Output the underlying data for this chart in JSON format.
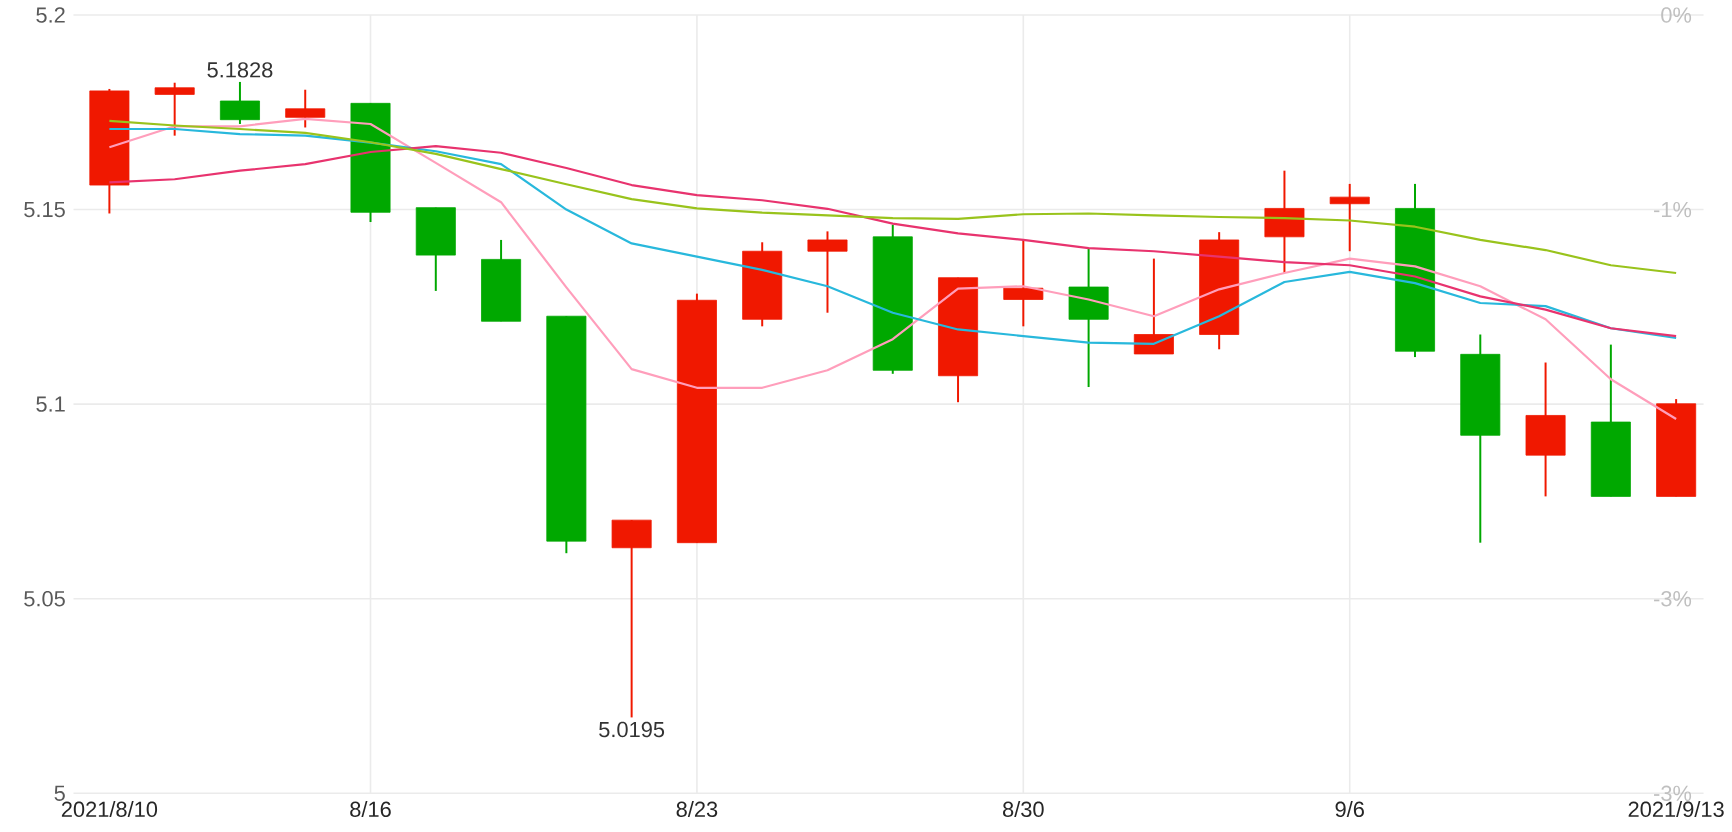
{
  "chart_data": {
    "type": "candlestick",
    "categories": [
      "2021/8/10",
      null,
      null,
      null,
      "8/16",
      null,
      null,
      null,
      null,
      "8/23",
      null,
      null,
      null,
      null,
      "8/30",
      null,
      null,
      null,
      null,
      "9/6",
      null,
      null,
      null,
      null,
      "2021/9/13"
    ],
    "ohlc": [
      [
        5.1563,
        5.181,
        5.149,
        5.1805
      ],
      [
        5.1796,
        5.1826,
        5.169,
        5.1813
      ],
      [
        5.1779,
        5.1828,
        5.172,
        5.1731
      ],
      [
        5.1737,
        5.1808,
        5.1711,
        5.1759
      ],
      [
        5.1773,
        5.1773,
        5.1468,
        5.1493
      ],
      [
        5.1505,
        5.1505,
        5.1291,
        5.1383
      ],
      [
        5.1372,
        5.1422,
        5.1213,
        5.1213
      ],
      [
        5.1226,
        5.1226,
        5.0617,
        5.0648
      ],
      [
        5.0631,
        5.0702,
        5.0195,
        5.0702
      ],
      [
        5.0644,
        5.1284,
        5.0644,
        5.1267
      ],
      [
        5.1218,
        5.1416,
        5.12,
        5.1393
      ],
      [
        5.1393,
        5.1444,
        5.1235,
        5.1422
      ],
      [
        5.143,
        5.1461,
        5.1078,
        5.1087
      ],
      [
        5.1073,
        5.1325,
        5.1005,
        5.1325
      ],
      [
        5.1269,
        5.1422,
        5.12,
        5.1298
      ],
      [
        5.1301,
        5.14,
        5.1044,
        5.1218
      ],
      [
        5.1129,
        5.1374,
        5.1129,
        5.1179
      ],
      [
        5.1179,
        5.1442,
        5.1141,
        5.1422
      ],
      [
        5.143,
        5.16,
        5.1337,
        5.1503
      ],
      [
        5.1515,
        5.1566,
        5.1393,
        5.1532
      ],
      [
        5.1503,
        5.1566,
        5.1121,
        5.1136
      ],
      [
        5.1128,
        5.1179,
        5.0644,
        5.092
      ],
      [
        5.0869,
        5.1107,
        5.0763,
        5.0971
      ],
      [
        5.0954,
        5.1153,
        5.0763,
        5.0763
      ],
      [
        5.0763,
        5.1013,
        5.0763,
        5.1001
      ]
    ],
    "colors": [
      "#f01800",
      "#f01800",
      "#00a800",
      "#f01800",
      "#00a800",
      "#00a800",
      "#00a800",
      "#00a800",
      "#f01800",
      "#f01800",
      "#f01800",
      "#f01800",
      "#00a800",
      "#f01800",
      "#f01800",
      "#00a800",
      "#f01800",
      "#f01800",
      "#f01800",
      "#f01800",
      "#00a800",
      "#00a800",
      "#f01800",
      "#00a800",
      "#f01800"
    ],
    "series": [
      {
        "type": "line",
        "color": "#ff9ebb",
        "values": [
          5.166,
          5.1714,
          5.1714,
          5.1733,
          5.172,
          5.162,
          5.1519,
          5.13,
          5.109,
          5.1042,
          5.1042,
          5.1087,
          5.1167,
          5.1297,
          5.1303,
          5.1269,
          5.1226,
          5.1295,
          5.1337,
          5.1374,
          5.1354,
          5.1303,
          5.1218,
          5.1064,
          5.0962
        ]
      },
      {
        "type": "line",
        "color": "#28b8dc",
        "values": [
          5.1707,
          5.1707,
          5.1694,
          5.169,
          5.1672,
          5.165,
          5.1617,
          5.15,
          5.1413,
          5.1379,
          5.1345,
          5.1303,
          5.1235,
          5.1192,
          5.1175,
          5.1158,
          5.1155,
          5.1226,
          5.1314,
          5.134,
          5.1311,
          5.126,
          5.1252,
          5.1195,
          5.117
        ]
      },
      {
        "type": "line",
        "color": "#e8336e",
        "values": [
          5.157,
          5.1578,
          5.16,
          5.1617,
          5.1648,
          5.1663,
          5.1646,
          5.1607,
          5.1563,
          5.1537,
          5.1524,
          5.1502,
          5.1464,
          5.1439,
          5.1422,
          5.1401,
          5.1393,
          5.1379,
          5.1365,
          5.1357,
          5.1328,
          5.1277,
          5.1243,
          5.1195,
          5.1175
        ]
      },
      {
        "type": "line",
        "color": "#99c31c",
        "values": [
          5.1728,
          5.1716,
          5.1707,
          5.1697,
          5.1673,
          5.1643,
          5.1604,
          5.1565,
          5.1527,
          5.1503,
          5.1492,
          5.1485,
          5.1478,
          5.1476,
          5.1488,
          5.149,
          5.1485,
          5.1481,
          5.1478,
          5.1472,
          5.1456,
          5.1422,
          5.1396,
          5.1357,
          5.1337
        ]
      }
    ],
    "ylim": [
      5,
      5.2
    ],
    "yticks": [
      5,
      5.05,
      5.1,
      5.15,
      5.2
    ],
    "y2lim": [
      -3.48,
      0
    ],
    "y2ticks": [
      {
        "value": -3.48,
        "label": "-3%"
      },
      {
        "value": -2.61,
        "label": "-3%"
      },
      {
        "value": -1.74,
        "label": null
      },
      {
        "value": -0.87,
        "label": "-1%"
      },
      {
        "value": 0,
        "label": "0%"
      }
    ],
    "annotations": [
      {
        "text": "5.1828",
        "y": 5.1828
      },
      {
        "text": "5.0195",
        "y": 5.0195
      }
    ],
    "grid": true
  }
}
